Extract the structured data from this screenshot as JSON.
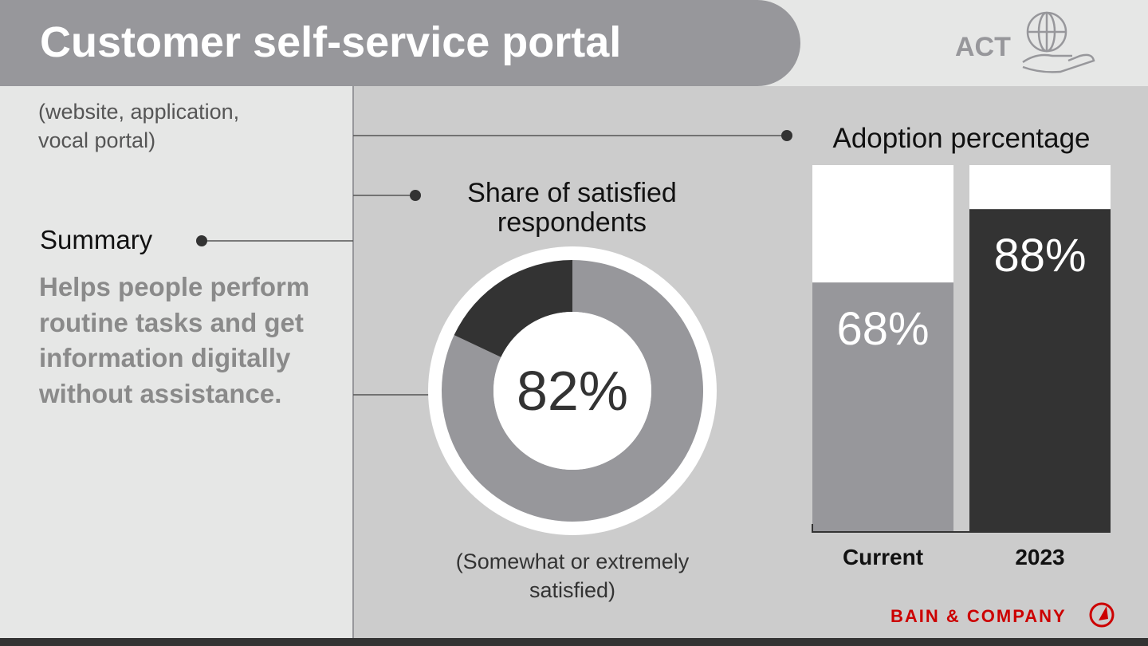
{
  "header": {
    "title": "Customer self-service portal",
    "badge": "ACT"
  },
  "subtitle": "(website, application, vocal portal)",
  "summary": {
    "label": "Summary",
    "text": "Helps people perform routine tasks and get information digitally without assistance."
  },
  "chart_data": [
    {
      "type": "donut",
      "title": "Share of satisfied respondents",
      "values": [
        82,
        18
      ],
      "value_labels": [
        "82%",
        null
      ],
      "colors": [
        "#97979b",
        "#333333"
      ],
      "note": "(Somewhat or extremely satisfied)"
    },
    {
      "type": "bar",
      "title": "Adoption percentage",
      "categories": [
        "Current",
        "2023"
      ],
      "values": [
        68,
        88
      ],
      "value_labels": [
        "68%",
        "88%"
      ],
      "colors": [
        "#97979b",
        "#333333"
      ],
      "ylim": [
        0,
        100
      ]
    }
  ],
  "footer": {
    "logo": "BAIN & COMPANY"
  }
}
